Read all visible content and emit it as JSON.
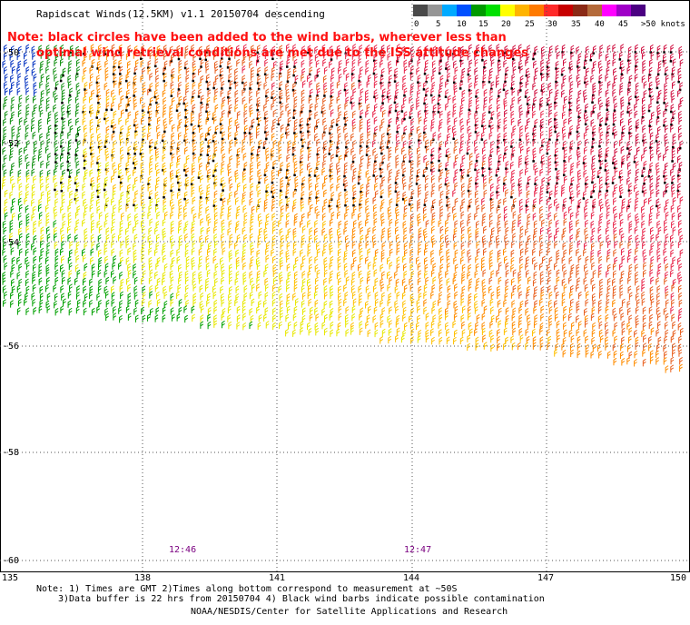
{
  "title": "Rapidscat Winds(12.5KM) v1.1 20150704 descending",
  "note": {
    "line1": "Note: black circles have been added to the wind barbs, wherever less than",
    "line2": "optimal wind retrieval conditions are met due to the ISS attitude changes"
  },
  "colorbar": {
    "labels": [
      "0",
      "5",
      "10",
      "15",
      "20",
      "25",
      "30",
      "35",
      "40",
      "45",
      ">50 knots"
    ],
    "colors": [
      "#4a4a4a",
      "#969696",
      "#00aaff",
      "#0050ff",
      "#009a00",
      "#00e000",
      "#ffff00",
      "#ffb400",
      "#ff7a00",
      "#ff2a2a",
      "#c80000",
      "#8b2a16",
      "#b46a3a",
      "#ff00ff",
      "#a000c8",
      "#4b0082"
    ]
  },
  "map": {
    "lat_labels": [
      "-50",
      "-52",
      "-54",
      "-56",
      "-58",
      "-60"
    ],
    "lon_labels": [
      "135",
      "138",
      "141",
      "144",
      "147",
      "150"
    ],
    "time_labels": [
      "12:46",
      "12:47"
    ]
  },
  "footer": {
    "line1": "Note: 1) Times are GMT 2)Times along bottom correspond to measurement at ~50S",
    "line2": "3)Data buffer is 22 hrs from 20150704 4) Black wind barbs indicate possible contamination",
    "credit": "NOAA/NESDIS/Center for Satellite Applications and Research"
  }
}
